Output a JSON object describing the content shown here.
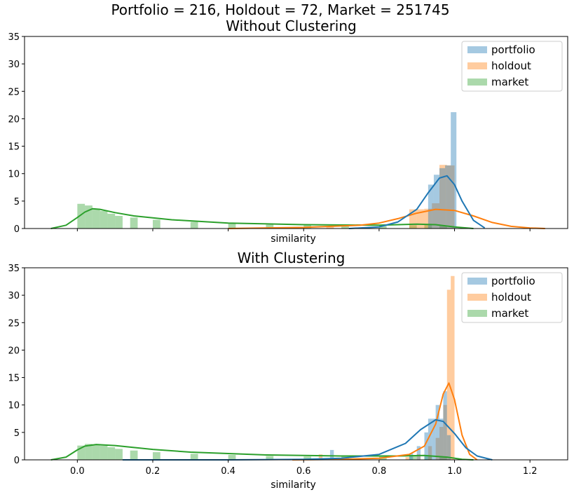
{
  "figure": {
    "suptitle": "Portfolio = 216, Holdout = 72, Market = 251745"
  },
  "colors": {
    "portfolio": "#1f77b4",
    "holdout": "#ff7f0e",
    "market": "#2ca02c"
  },
  "chart_data": [
    {
      "type": "histogram",
      "title": "Without Clustering",
      "xlabel": "similarity",
      "ylabel": "",
      "xlim": [
        -0.14,
        1.3
      ],
      "ylim": [
        0,
        35
      ],
      "xticks": [
        0.0,
        0.2,
        0.4,
        0.6,
        0.8,
        1.0,
        1.2
      ],
      "xtick_labels": [],
      "yticks": [
        0,
        5,
        10,
        15,
        20,
        25,
        30,
        35
      ],
      "ytick_labels": [
        "0",
        "5",
        "10",
        "15",
        "20",
        "25",
        "30",
        "35"
      ],
      "legend": {
        "position": "top-right",
        "entries": [
          "portfolio",
          "holdout",
          "market"
        ]
      },
      "series": [
        {
          "name": "market",
          "bar_width": 0.02,
          "bars": [
            [
              0.0,
              4.5
            ],
            [
              0.02,
              4.2
            ],
            [
              0.04,
              3.5
            ],
            [
              0.06,
              3.2
            ],
            [
              0.08,
              2.7
            ],
            [
              0.1,
              2.3
            ],
            [
              0.14,
              2.0
            ],
            [
              0.2,
              1.6
            ],
            [
              0.3,
              1.2
            ],
            [
              0.4,
              0.9
            ],
            [
              0.5,
              0.7
            ],
            [
              0.6,
              0.6
            ],
            [
              0.7,
              0.5
            ],
            [
              0.8,
              0.5
            ],
            [
              0.88,
              0.6
            ],
            [
              0.92,
              0.7
            ],
            [
              0.96,
              0.5
            ]
          ],
          "kde": [
            [
              -0.07,
              0.0
            ],
            [
              -0.03,
              0.6
            ],
            [
              0.0,
              2.0
            ],
            [
              0.02,
              3.0
            ],
            [
              0.04,
              3.6
            ],
            [
              0.06,
              3.5
            ],
            [
              0.1,
              2.9
            ],
            [
              0.15,
              2.3
            ],
            [
              0.25,
              1.6
            ],
            [
              0.4,
              1.0
            ],
            [
              0.6,
              0.7
            ],
            [
              0.8,
              0.6
            ],
            [
              0.9,
              0.8
            ],
            [
              0.95,
              0.7
            ],
            [
              1.0,
              0.3
            ],
            [
              1.05,
              0.0
            ]
          ]
        },
        {
          "name": "holdout",
          "bar_width": 0.02,
          "bars": [
            [
              0.66,
              0.3
            ],
            [
              0.88,
              3.5
            ],
            [
              0.9,
              3.5
            ],
            [
              0.92,
              3.6
            ],
            [
              0.94,
              4.6
            ],
            [
              0.96,
              11.6
            ],
            [
              0.98,
              11.5
            ]
          ],
          "kde": [
            [
              0.4,
              0.0
            ],
            [
              0.6,
              0.2
            ],
            [
              0.75,
              0.6
            ],
            [
              0.8,
              1.0
            ],
            [
              0.85,
              1.8
            ],
            [
              0.9,
              2.8
            ],
            [
              0.95,
              3.5
            ],
            [
              1.0,
              3.3
            ],
            [
              1.05,
              2.3
            ],
            [
              1.1,
              1.1
            ],
            [
              1.15,
              0.4
            ],
            [
              1.2,
              0.1
            ],
            [
              1.24,
              0.0
            ]
          ]
        },
        {
          "name": "portfolio",
          "bar_width": 0.015,
          "bars": [
            [
              0.93,
              8.0
            ],
            [
              0.945,
              9.8
            ],
            [
              0.96,
              11.0
            ],
            [
              0.975,
              11.5
            ],
            [
              0.99,
              21.2
            ]
          ],
          "kde": [
            [
              0.72,
              0.0
            ],
            [
              0.8,
              0.3
            ],
            [
              0.85,
              1.2
            ],
            [
              0.9,
              3.5
            ],
            [
              0.93,
              6.5
            ],
            [
              0.96,
              9.2
            ],
            [
              0.98,
              9.6
            ],
            [
              1.0,
              8.0
            ],
            [
              1.02,
              5.0
            ],
            [
              1.05,
              1.5
            ],
            [
              1.08,
              0.1
            ]
          ]
        }
      ]
    },
    {
      "type": "histogram",
      "title": "With Clustering",
      "xlabel": "similarity",
      "ylabel": "",
      "xlim": [
        -0.14,
        1.3
      ],
      "ylim": [
        0,
        35
      ],
      "xticks": [
        0.0,
        0.2,
        0.4,
        0.6,
        0.8,
        1.0,
        1.2
      ],
      "xtick_labels": [
        "0.0",
        "0.2",
        "0.4",
        "0.6",
        "0.8",
        "1.0",
        "1.2"
      ],
      "yticks": [
        0,
        5,
        10,
        15,
        20,
        25,
        30,
        35
      ],
      "ytick_labels": [
        "0",
        "5",
        "10",
        "15",
        "20",
        "25",
        "30",
        "35"
      ],
      "legend": {
        "position": "top-right",
        "entries": [
          "portfolio",
          "holdout",
          "market"
        ]
      },
      "series": [
        {
          "name": "market",
          "bar_width": 0.02,
          "bars": [
            [
              0.0,
              2.6
            ],
            [
              0.02,
              2.9
            ],
            [
              0.04,
              2.8
            ],
            [
              0.06,
              2.6
            ],
            [
              0.08,
              2.3
            ],
            [
              0.1,
              2.0
            ],
            [
              0.14,
              1.7
            ],
            [
              0.2,
              1.4
            ],
            [
              0.3,
              1.1
            ],
            [
              0.4,
              0.9
            ],
            [
              0.5,
              0.7
            ],
            [
              0.6,
              0.6
            ],
            [
              0.7,
              0.6
            ],
            [
              0.8,
              0.6
            ],
            [
              0.88,
              0.7
            ],
            [
              0.92,
              0.8
            ],
            [
              0.96,
              0.5
            ]
          ],
          "kde": [
            [
              -0.07,
              0.0
            ],
            [
              -0.03,
              0.5
            ],
            [
              0.0,
              1.8
            ],
            [
              0.02,
              2.5
            ],
            [
              0.05,
              2.8
            ],
            [
              0.1,
              2.6
            ],
            [
              0.2,
              1.9
            ],
            [
              0.3,
              1.4
            ],
            [
              0.5,
              0.9
            ],
            [
              0.7,
              0.7
            ],
            [
              0.85,
              0.7
            ],
            [
              0.92,
              0.8
            ],
            [
              0.98,
              0.5
            ],
            [
              1.02,
              0.1
            ],
            [
              1.05,
              0.0
            ]
          ]
        },
        {
          "name": "holdout",
          "bar_width": 0.01,
          "bars": [
            [
              0.64,
              1.0
            ],
            [
              0.87,
              0.5
            ],
            [
              0.9,
              1.0
            ],
            [
              0.93,
              2.5
            ],
            [
              0.95,
              4.0
            ],
            [
              0.96,
              6.0
            ],
            [
              0.97,
              10.0
            ],
            [
              0.98,
              31.0
            ],
            [
              0.99,
              33.5
            ]
          ],
          "kde": [
            [
              0.57,
              0.0
            ],
            [
              0.7,
              0.1
            ],
            [
              0.8,
              0.3
            ],
            [
              0.88,
              1.0
            ],
            [
              0.92,
              2.5
            ],
            [
              0.95,
              6.5
            ],
            [
              0.97,
              12.0
            ],
            [
              0.985,
              14.0
            ],
            [
              1.0,
              11.0
            ],
            [
              1.02,
              4.5
            ],
            [
              1.04,
              1.0
            ],
            [
              1.06,
              0.0
            ]
          ]
        },
        {
          "name": "portfolio",
          "bar_width": 0.01,
          "bars": [
            [
              0.67,
              1.8
            ],
            [
              0.88,
              1.2
            ],
            [
              0.9,
              2.5
            ],
            [
              0.92,
              5.0
            ],
            [
              0.93,
              7.5
            ],
            [
              0.94,
              7.5
            ],
            [
              0.95,
              10.0
            ],
            [
              0.96,
              7.5
            ],
            [
              0.97,
              12.5
            ],
            [
              0.98,
              4.5
            ]
          ],
          "kde": [
            [
              0.12,
              0.0
            ],
            [
              0.4,
              0.0
            ],
            [
              0.6,
              0.1
            ],
            [
              0.7,
              0.3
            ],
            [
              0.8,
              1.0
            ],
            [
              0.87,
              3.0
            ],
            [
              0.91,
              5.5
            ],
            [
              0.95,
              7.3
            ],
            [
              0.97,
              7.0
            ],
            [
              1.0,
              4.8
            ],
            [
              1.03,
              2.2
            ],
            [
              1.06,
              0.7
            ],
            [
              1.1,
              0.0
            ]
          ]
        }
      ]
    }
  ]
}
